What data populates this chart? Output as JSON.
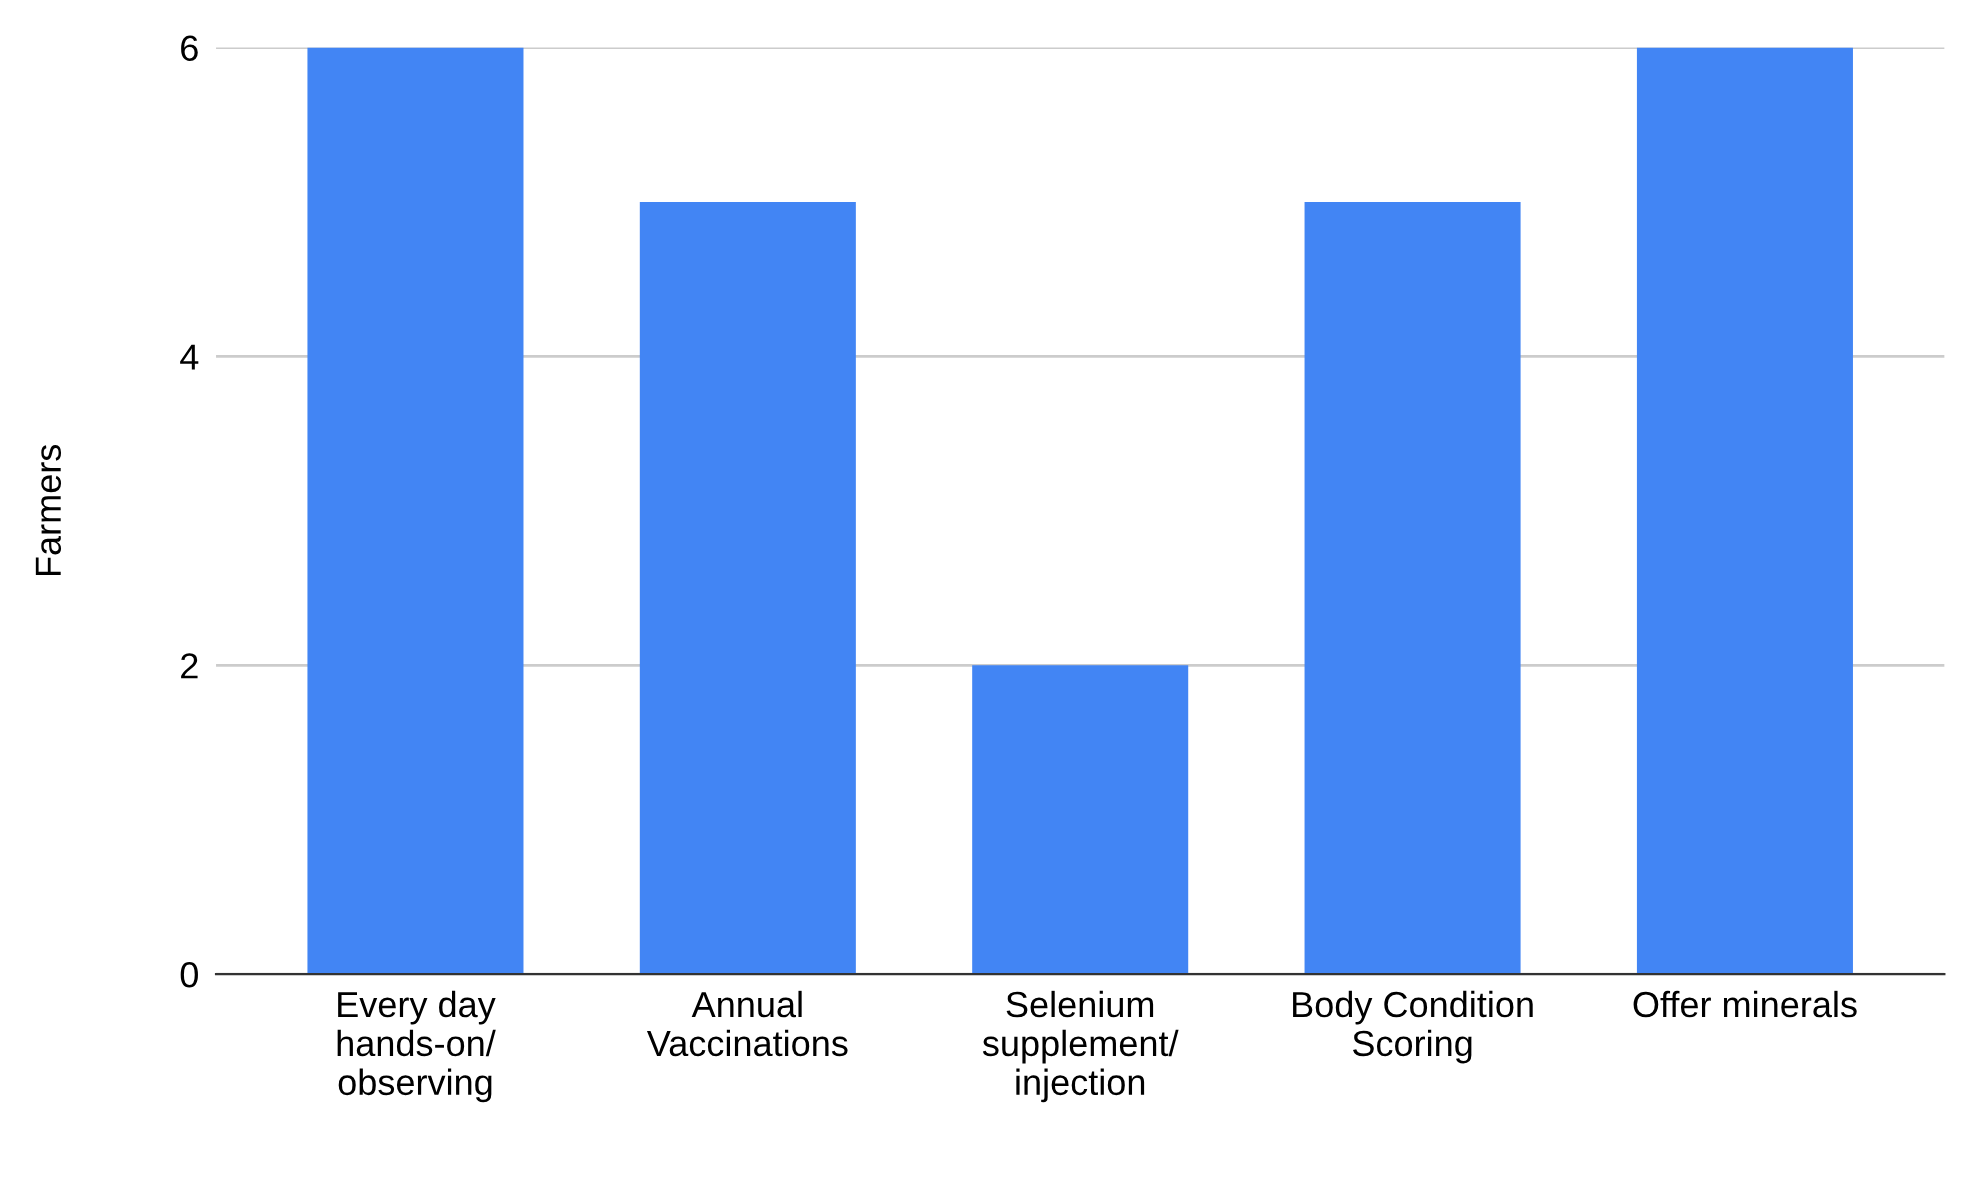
{
  "chart_data": {
    "type": "bar",
    "ylabel": "Farmers",
    "categories": [
      "Every day\nhands-on/\nobserving",
      "Annual\nVaccinations",
      "Selenium\nsupplement/\ninjection",
      "Body Condition\nScoring",
      "Offer minerals"
    ],
    "values": [
      6,
      5,
      2,
      5,
      6
    ],
    "color": "#4285f4",
    "ylim": [
      0,
      6
    ],
    "yticks": [
      0,
      2,
      4,
      6
    ],
    "grid": "y"
  }
}
